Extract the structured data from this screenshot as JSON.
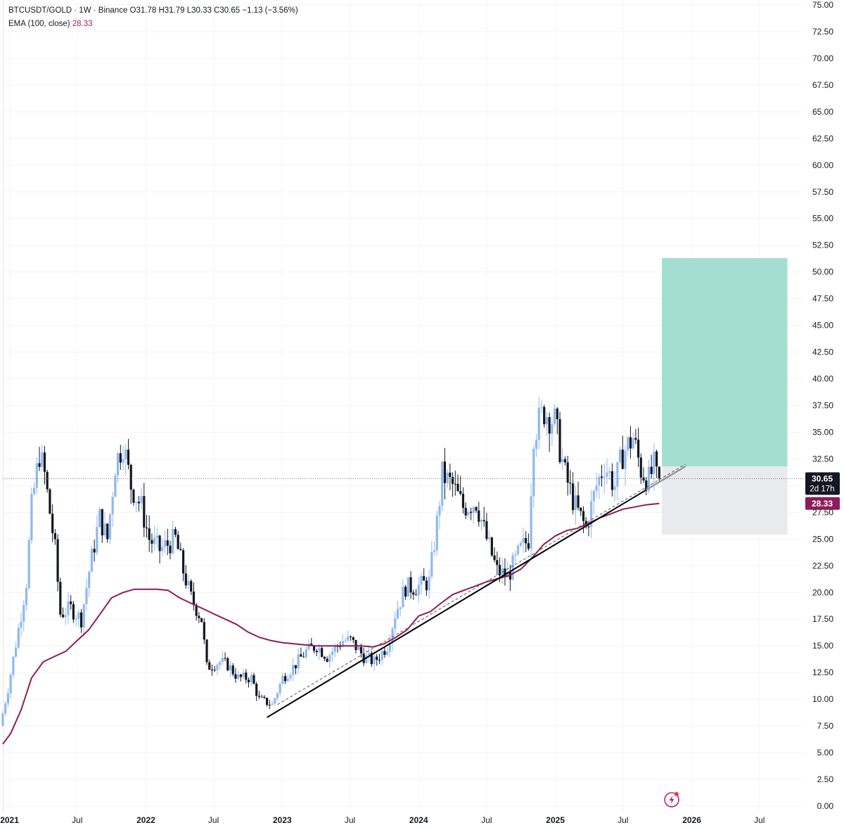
{
  "legend": {
    "line1": "BTCUSDT/GOLD · 1W · Binance  O31.78  H31.79  L30.33  C30.65  −1.13 (−3.56%)",
    "ema_label": "EMA (100, close)",
    "ema_value": "28.33"
  },
  "price_tags": {
    "last_price": "30.65",
    "countdown": "2d 17h",
    "ema_price": "28.33"
  },
  "colors": {
    "up": "#8fb8ee",
    "down": "#131722",
    "ema": "#8c1d5a",
    "target_zone": "#9fdccf",
    "stop_zone": "#e9eaee",
    "trendline": "#000000"
  },
  "icons": [
    "lightning-badge-icon"
  ],
  "chart_data": {
    "type": "candlestick",
    "title": "BTCUSDT/GOLD · 1W · Binance",
    "y_axis": {
      "ticks": [
        "75.00",
        "72.50",
        "70.00",
        "67.50",
        "65.00",
        "62.50",
        "60.00",
        "57.50",
        "55.00",
        "52.50",
        "50.00",
        "47.50",
        "45.00",
        "42.50",
        "40.00",
        "37.50",
        "35.00",
        "32.50",
        "30.00",
        "27.50",
        "25.00",
        "22.50",
        "20.00",
        "17.50",
        "15.00",
        "12.50",
        "10.00",
        "7.50",
        "5.00",
        "2.50",
        "0.00"
      ],
      "range": [
        0,
        75
      ],
      "position": "right"
    },
    "x_axis": {
      "ticks": [
        "2021",
        "Jul",
        "2022",
        "Jul",
        "2023",
        "Jul",
        "2024",
        "Jul",
        "2025",
        "Jul",
        "2026",
        "Jul"
      ],
      "range": [
        "2020-12-14",
        "2026-10-15"
      ]
    },
    "ohlc_last": {
      "open": 31.78,
      "high": 31.79,
      "low": 30.33,
      "close": 30.65,
      "change": -1.13,
      "change_pct": -3.56
    },
    "close_path": [
      [
        "2020-12-14",
        7.5
      ],
      [
        "2021-01-04",
        11
      ],
      [
        "2021-02-08",
        18
      ],
      [
        "2021-02-22",
        21
      ],
      [
        "2021-03-08",
        28
      ],
      [
        "2021-03-29",
        33
      ],
      [
        "2021-04-12",
        31
      ],
      [
        "2021-05-10",
        24
      ],
      [
        "2021-05-24",
        18
      ],
      [
        "2021-06-21",
        18.5
      ],
      [
        "2021-07-19",
        17.5
      ],
      [
        "2021-08-09",
        22
      ],
      [
        "2021-09-06",
        27
      ],
      [
        "2021-09-27",
        25
      ],
      [
        "2021-10-18",
        32
      ],
      [
        "2021-11-08",
        34
      ],
      [
        "2021-11-29",
        30
      ],
      [
        "2021-12-27",
        28
      ],
      [
        "2022-01-17",
        25
      ],
      [
        "2022-02-14",
        24
      ],
      [
        "2022-03-28",
        25
      ],
      [
        "2022-04-18",
        22
      ],
      [
        "2022-05-09",
        19.5
      ],
      [
        "2022-06-06",
        17.5
      ],
      [
        "2022-06-20",
        13
      ],
      [
        "2022-07-25",
        13.5
      ],
      [
        "2022-08-15",
        13.2
      ],
      [
        "2022-09-12",
        12
      ],
      [
        "2022-10-17",
        12
      ],
      [
        "2022-11-07",
        10
      ],
      [
        "2022-12-12",
        9.5
      ],
      [
        "2023-01-09",
        12
      ],
      [
        "2023-02-06",
        13
      ],
      [
        "2023-03-13",
        14.5
      ],
      [
        "2023-04-10",
        15
      ],
      [
        "2023-05-08",
        14
      ],
      [
        "2023-06-19",
        15.5
      ],
      [
        "2023-07-10",
        15.5
      ],
      [
        "2023-08-14",
        14
      ],
      [
        "2023-09-11",
        13.5
      ],
      [
        "2023-10-16",
        15
      ],
      [
        "2023-11-06",
        18
      ],
      [
        "2023-12-04",
        20.5
      ],
      [
        "2024-01-01",
        20.5
      ],
      [
        "2024-02-05",
        21
      ],
      [
        "2024-02-26",
        26.5
      ],
      [
        "2024-03-11",
        31
      ],
      [
        "2024-04-08",
        30
      ],
      [
        "2024-05-06",
        28
      ],
      [
        "2024-06-10",
        28.5
      ],
      [
        "2024-07-08",
        25
      ],
      [
        "2024-08-05",
        22
      ],
      [
        "2024-09-02",
        21.5
      ],
      [
        "2024-10-07",
        24
      ],
      [
        "2024-10-28",
        25
      ],
      [
        "2024-11-11",
        35
      ],
      [
        "2024-12-09",
        37
      ],
      [
        "2025-01-06",
        36
      ],
      [
        "2025-02-03",
        31
      ],
      [
        "2025-03-03",
        28
      ],
      [
        "2025-03-31",
        26
      ],
      [
        "2025-04-28",
        30
      ],
      [
        "2025-05-19",
        32
      ],
      [
        "2025-06-16",
        30
      ],
      [
        "2025-07-07",
        33
      ],
      [
        "2025-08-04",
        34.5
      ],
      [
        "2025-08-25",
        31.5
      ],
      [
        "2025-09-15",
        30.5
      ],
      [
        "2025-09-29",
        31.8
      ],
      [
        "2025-10-06",
        30.65
      ]
    ],
    "indicators": [
      {
        "name": "EMA (100, close)",
        "last_value": 28.33,
        "points": [
          [
            "2020-12-14",
            5.8
          ],
          [
            "2021-01-04",
            6.8
          ],
          [
            "2021-02-01",
            9
          ],
          [
            "2021-03-01",
            12
          ],
          [
            "2021-04-01",
            13.5
          ],
          [
            "2021-05-01",
            14
          ],
          [
            "2021-06-01",
            14.5
          ],
          [
            "2021-07-01",
            15.5
          ],
          [
            "2021-08-01",
            16.5
          ],
          [
            "2021-09-01",
            18
          ],
          [
            "2021-10-01",
            19.5
          ],
          [
            "2021-11-01",
            20
          ],
          [
            "2021-12-01",
            20.3
          ],
          [
            "2022-01-01",
            20.3
          ],
          [
            "2022-02-01",
            20.3
          ],
          [
            "2022-03-01",
            20.2
          ],
          [
            "2022-04-01",
            19.5
          ],
          [
            "2022-05-01",
            19
          ],
          [
            "2022-06-01",
            18.5
          ],
          [
            "2022-07-01",
            18
          ],
          [
            "2022-08-01",
            17.5
          ],
          [
            "2022-09-01",
            17
          ],
          [
            "2022-10-01",
            16.3
          ],
          [
            "2022-11-01",
            15.8
          ],
          [
            "2022-12-01",
            15.5
          ],
          [
            "2023-01-01",
            15.3
          ],
          [
            "2023-02-01",
            15.2
          ],
          [
            "2023-03-01",
            15.1
          ],
          [
            "2023-04-01",
            15
          ],
          [
            "2023-05-01",
            15
          ],
          [
            "2023-06-01",
            15
          ],
          [
            "2023-07-01",
            15
          ],
          [
            "2023-08-01",
            15
          ],
          [
            "2023-09-01",
            14.9
          ],
          [
            "2023-10-01",
            15.2
          ],
          [
            "2023-11-01",
            15.8
          ],
          [
            "2023-12-01",
            16.5
          ],
          [
            "2024-01-01",
            17.8
          ],
          [
            "2024-02-01",
            18.2
          ],
          [
            "2024-03-01",
            19
          ],
          [
            "2024-04-01",
            19.8
          ],
          [
            "2024-05-01",
            20.2
          ],
          [
            "2024-06-01",
            20.6
          ],
          [
            "2024-07-01",
            21
          ],
          [
            "2024-08-01",
            21.3
          ],
          [
            "2024-09-01",
            21.6
          ],
          [
            "2024-10-01",
            22.2
          ],
          [
            "2024-11-01",
            23.3
          ],
          [
            "2024-12-01",
            24.5
          ],
          [
            "2025-01-01",
            25.3
          ],
          [
            "2025-02-01",
            25.8
          ],
          [
            "2025-03-01",
            26
          ],
          [
            "2025-04-01",
            26.5
          ],
          [
            "2025-05-01",
            27
          ],
          [
            "2025-06-01",
            27.4
          ],
          [
            "2025-07-01",
            27.8
          ],
          [
            "2025-08-01",
            28
          ],
          [
            "2025-09-01",
            28.2
          ],
          [
            "2025-10-06",
            28.33
          ]
        ]
      }
    ],
    "annotations": {
      "trendline": {
        "start": [
          "2022-11-21",
          8.3
        ],
        "end": [
          "2025-12-15",
          31.8
        ]
      },
      "parallel_dashed": {
        "start": [
          "2022-12-19",
          9.5
        ],
        "end": [
          "2025-12-15",
          32.0
        ]
      },
      "long_position": {
        "start": "2025-10-13",
        "end": "2026-09-14",
        "entry": 31.8,
        "target": 51.3,
        "stop": 25.4
      },
      "last_price_line": 30.65
    }
  }
}
